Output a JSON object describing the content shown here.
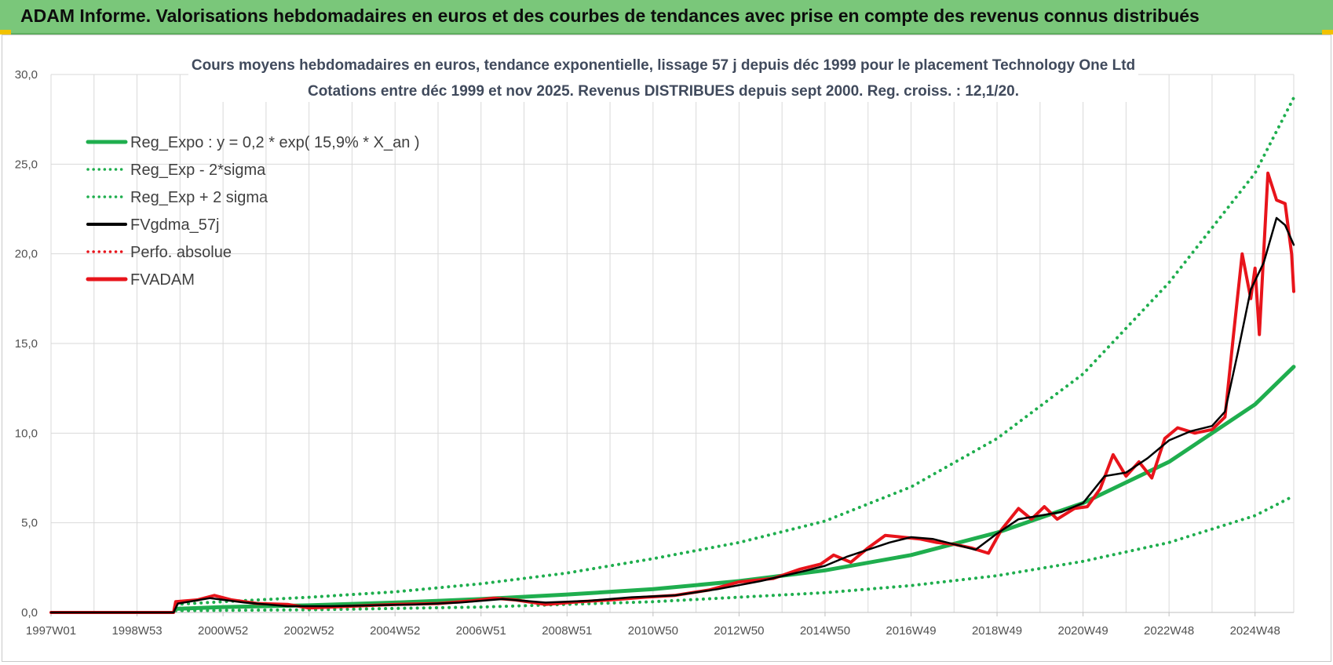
{
  "header": {
    "title": "ADAM Informe. Valorisations hebdomadaires en euros et des courbes de tendances avec prise en compte des revenus connus distribués"
  },
  "colors": {
    "banner": "#7ac77a",
    "reg_green": "#1fae4e",
    "perf_red": "#e8141b",
    "fv_black": "#000000",
    "grid": "#d9d9d9"
  },
  "chart_data": {
    "type": "line",
    "title": [
      "Cours moyens hebdomadaires en euros, tendance exponentielle, lissage 57 j depuis déc 1999 pour le placement Technology One Ltd",
      "Cotations entre déc 1999 et nov 2025. Revenus DISTRIBUES depuis sept 2000. Reg. croiss. : 12,1/20."
    ],
    "xlabel": "",
    "ylabel": "",
    "x_range": [
      1997.0,
      2025.9
    ],
    "ylim": [
      0,
      30
    ],
    "y_ticks": [
      "0,0",
      "5,0",
      "10,0",
      "15,0",
      "20,0",
      "25,0",
      "30,0"
    ],
    "y_tick_values": [
      0,
      5,
      10,
      15,
      20,
      25,
      30
    ],
    "x_ticks": [
      {
        "label": "1997W01",
        "x": 1997.0
      },
      {
        "label": "1998W53",
        "x": 1999.0
      },
      {
        "label": "2000W52",
        "x": 2001.0
      },
      {
        "label": "2002W52",
        "x": 2003.0
      },
      {
        "label": "2004W52",
        "x": 2005.0
      },
      {
        "label": "2006W51",
        "x": 2007.0
      },
      {
        "label": "2008W51",
        "x": 2009.0
      },
      {
        "label": "2010W50",
        "x": 2011.0
      },
      {
        "label": "2012W50",
        "x": 2013.0
      },
      {
        "label": "2014W50",
        "x": 2015.0
      },
      {
        "label": "2016W49",
        "x": 2017.0
      },
      {
        "label": "2018W49",
        "x": 2019.0
      },
      {
        "label": "2020W49",
        "x": 2021.0
      },
      {
        "label": "2022W48",
        "x": 2023.0
      },
      {
        "label": "2024W48",
        "x": 2025.0
      }
    ],
    "grid": true,
    "legend_position": "top-left",
    "legend": [
      {
        "name": "Reg_Expo : y = 0,2 * exp( 15,9% *  X_an )",
        "style": "solid-thick",
        "color": "#1fae4e"
      },
      {
        "name": "Reg_Exp - 2*sigma",
        "style": "dotted",
        "color": "#1fae4e"
      },
      {
        "name": "Reg_Exp + 2 sigma",
        "style": "dotted",
        "color": "#1fae4e"
      },
      {
        "name": "FVgdma_57j",
        "style": "solid",
        "color": "#000000"
      },
      {
        "name": "Perfo. absolue",
        "style": "dotted",
        "color": "#e8141b"
      },
      {
        "name": "FVADAM",
        "style": "solid-thick",
        "color": "#e8141b"
      }
    ],
    "series": [
      {
        "name": "Reg_Expo",
        "x": [
          1999.9,
          2001.0,
          2003.0,
          2005.0,
          2007.0,
          2009.0,
          2011.0,
          2013.0,
          2015.0,
          2017.0,
          2019.0,
          2021.0,
          2023.0,
          2025.0,
          2025.9
        ],
        "values": [
          0.2,
          0.3,
          0.4,
          0.55,
          0.75,
          1.0,
          1.3,
          1.75,
          2.35,
          3.2,
          4.45,
          6.1,
          8.4,
          11.6,
          13.7
        ]
      },
      {
        "name": "Reg_Exp - 2*sigma",
        "x": [
          1999.9,
          2003.0,
          2007.0,
          2011.0,
          2015.0,
          2017.0,
          2019.0,
          2021.0,
          2023.0,
          2025.0,
          2025.9
        ],
        "values": [
          0.1,
          0.15,
          0.3,
          0.6,
          1.1,
          1.5,
          2.05,
          2.85,
          3.9,
          5.4,
          6.5
        ]
      },
      {
        "name": "Reg_Exp + 2 sigma",
        "x": [
          1999.9,
          2001.0,
          2003.0,
          2005.0,
          2007.0,
          2009.0,
          2011.0,
          2013.0,
          2015.0,
          2017.0,
          2019.0,
          2021.0,
          2023.0,
          2025.0,
          2025.9
        ],
        "values": [
          0.45,
          0.6,
          0.85,
          1.15,
          1.6,
          2.2,
          3.0,
          3.9,
          5.1,
          7.0,
          9.7,
          13.3,
          18.4,
          24.5,
          28.7
        ]
      },
      {
        "name": "FVgdma_57j",
        "x": [
          1997.0,
          1999.85,
          1999.95,
          2000.7,
          2001.5,
          2002.5,
          2003.5,
          2004.5,
          2005.5,
          2006.5,
          2007.5,
          2008.5,
          2009.5,
          2010.5,
          2011.5,
          2012.5,
          2013.5,
          2014.5,
          2015.0,
          2015.5,
          2016.5,
          2017.0,
          2017.5,
          2018.0,
          2018.5,
          2019.0,
          2019.5,
          2020.0,
          2020.5,
          2021.0,
          2021.5,
          2022.0,
          2022.5,
          2023.0,
          2023.5,
          2024.0,
          2024.3,
          2024.6,
          2024.9,
          2025.2,
          2025.5,
          2025.7,
          2025.9
        ],
        "values": [
          0,
          0,
          0.5,
          0.8,
          0.55,
          0.35,
          0.35,
          0.4,
          0.45,
          0.55,
          0.75,
          0.55,
          0.65,
          0.85,
          0.95,
          1.3,
          1.75,
          2.3,
          2.6,
          3.1,
          3.9,
          4.2,
          4.1,
          3.8,
          3.5,
          4.4,
          5.2,
          5.4,
          5.6,
          6.1,
          7.6,
          7.8,
          8.6,
          9.6,
          10.1,
          10.4,
          11.2,
          14.5,
          18.0,
          19.5,
          22.0,
          21.6,
          20.5
        ]
      },
      {
        "name": "FVADAM",
        "x": [
          1997.0,
          1999.85,
          1999.9,
          2000.4,
          2000.8,
          2001.2,
          2001.8,
          2002.5,
          2003.0,
          2004.0,
          2005.0,
          2006.0,
          2006.8,
          2007.3,
          2007.8,
          2008.5,
          2009.3,
          2010.0,
          2010.8,
          2011.5,
          2012.3,
          2013.0,
          2013.8,
          2014.4,
          2014.9,
          2015.2,
          2015.6,
          2016.0,
          2016.4,
          2016.8,
          2017.2,
          2017.6,
          2018.0,
          2018.4,
          2018.8,
          2019.1,
          2019.5,
          2019.8,
          2020.1,
          2020.4,
          2020.8,
          2021.1,
          2021.4,
          2021.7,
          2022.0,
          2022.3,
          2022.6,
          2022.9,
          2023.2,
          2023.6,
          2024.0,
          2024.3,
          2024.5,
          2024.7,
          2024.9,
          2025.0,
          2025.1,
          2025.3,
          2025.5,
          2025.7,
          2025.85,
          2025.9
        ],
        "values": [
          0,
          0,
          0.6,
          0.7,
          0.95,
          0.7,
          0.5,
          0.45,
          0.25,
          0.35,
          0.45,
          0.5,
          0.65,
          0.8,
          0.7,
          0.45,
          0.6,
          0.7,
          0.85,
          0.95,
          1.25,
          1.7,
          1.9,
          2.4,
          2.7,
          3.2,
          2.8,
          3.6,
          4.3,
          4.2,
          4.1,
          3.9,
          3.8,
          3.6,
          3.3,
          4.6,
          5.8,
          5.2,
          5.9,
          5.2,
          5.8,
          5.9,
          6.9,
          8.8,
          7.6,
          8.4,
          7.5,
          9.7,
          10.3,
          10.0,
          10.2,
          10.9,
          15.5,
          20.0,
          17.5,
          19.2,
          15.5,
          24.5,
          23.0,
          22.8,
          20.0,
          17.9
        ]
      }
    ]
  }
}
